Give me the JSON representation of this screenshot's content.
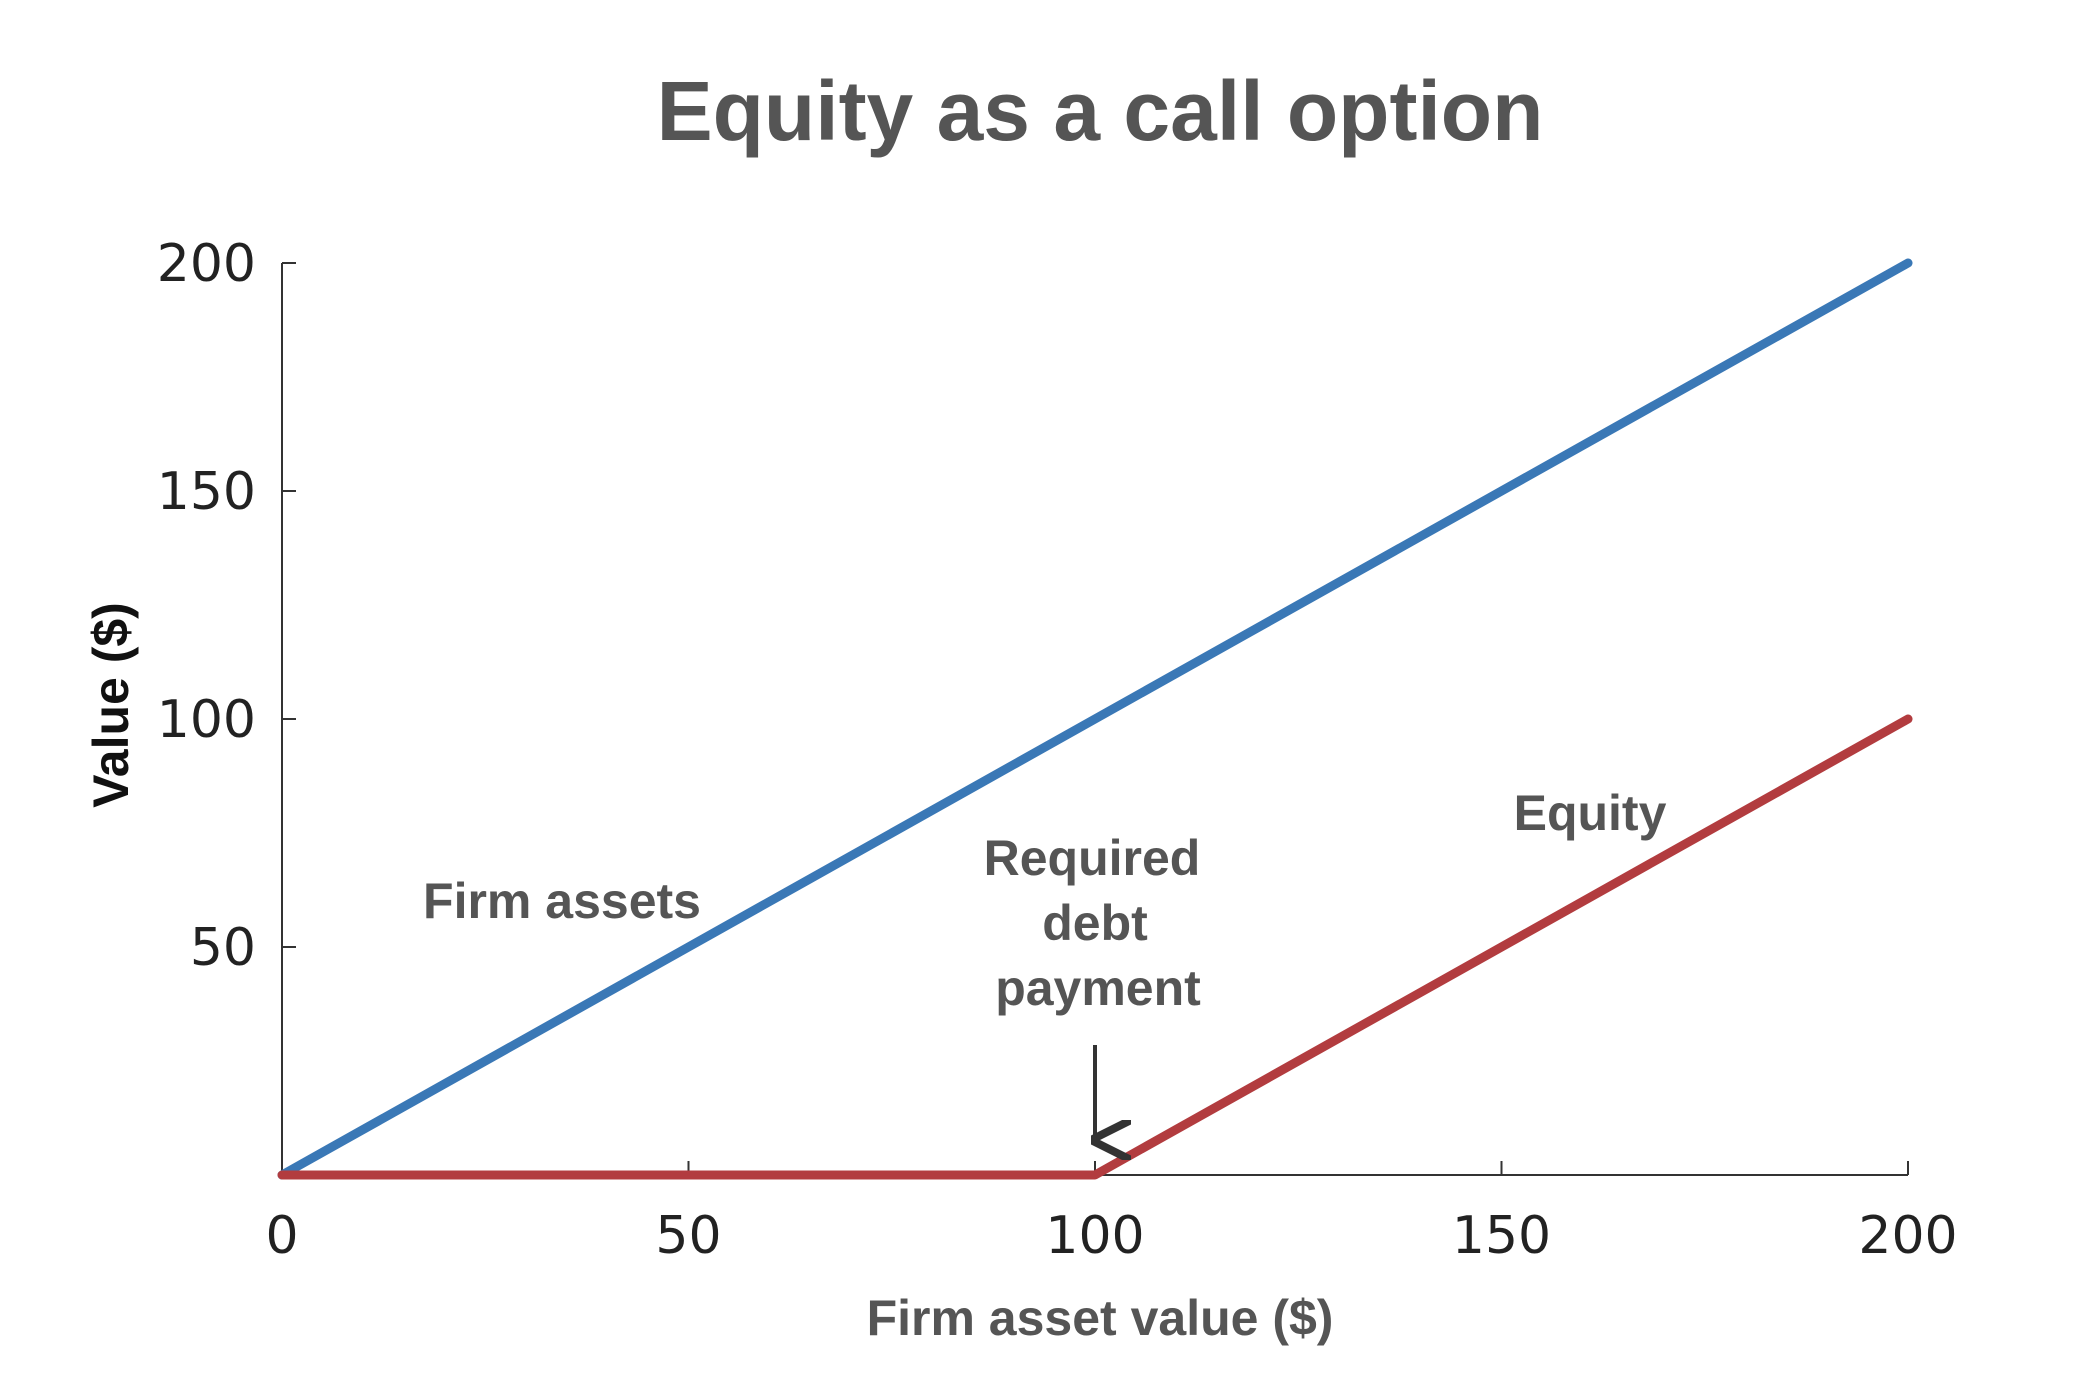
{
  "chart_data": {
    "type": "line",
    "title": "Equity as a call option",
    "xlabel": "Firm asset value ($)",
    "ylabel": "Value ($)",
    "xlim": [
      0,
      200
    ],
    "ylim": [
      0,
      200
    ],
    "x_ticks": [
      "0",
      "50",
      "100",
      "150",
      "200"
    ],
    "y_ticks": [
      "50",
      "100",
      "150",
      "200"
    ],
    "grid": false,
    "series": [
      {
        "name": "Firm assets",
        "color": "#3a78b6",
        "points": [
          [
            0,
            0
          ],
          [
            200,
            200
          ]
        ]
      },
      {
        "name": "Equity",
        "color": "#b23c3f",
        "points": [
          [
            0,
            0
          ],
          [
            100,
            0
          ],
          [
            200,
            100
          ]
        ]
      }
    ],
    "annotations": [
      {
        "lines": [
          "Required",
          "debt",
          "payment"
        ],
        "x": 100,
        "arrow": "down"
      }
    ]
  }
}
